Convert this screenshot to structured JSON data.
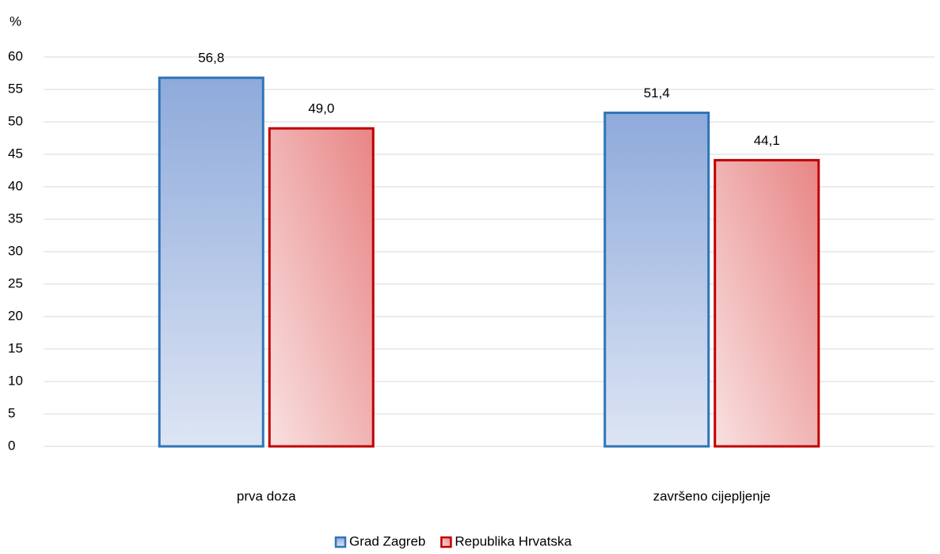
{
  "chart_data": {
    "type": "bar",
    "y_label": "%",
    "categories": [
      "prva doza",
      "završeno cijepljenje"
    ],
    "series": [
      {
        "name": "Grad Zagreb",
        "color": "#2e75b6",
        "values": [
          56.8,
          51.4
        ],
        "value_labels": [
          "56,8",
          "51,4"
        ]
      },
      {
        "name": "Republika Hrvatska",
        "color": "#c00000",
        "values": [
          49.0,
          44.1
        ],
        "value_labels": [
          "49,0",
          "44,1"
        ]
      }
    ],
    "ylim": [
      0,
      60
    ],
    "yticks": [
      0,
      5,
      10,
      15,
      20,
      25,
      30,
      35,
      40,
      45,
      50,
      55,
      60
    ],
    "grid": true,
    "legend": "bottom"
  }
}
